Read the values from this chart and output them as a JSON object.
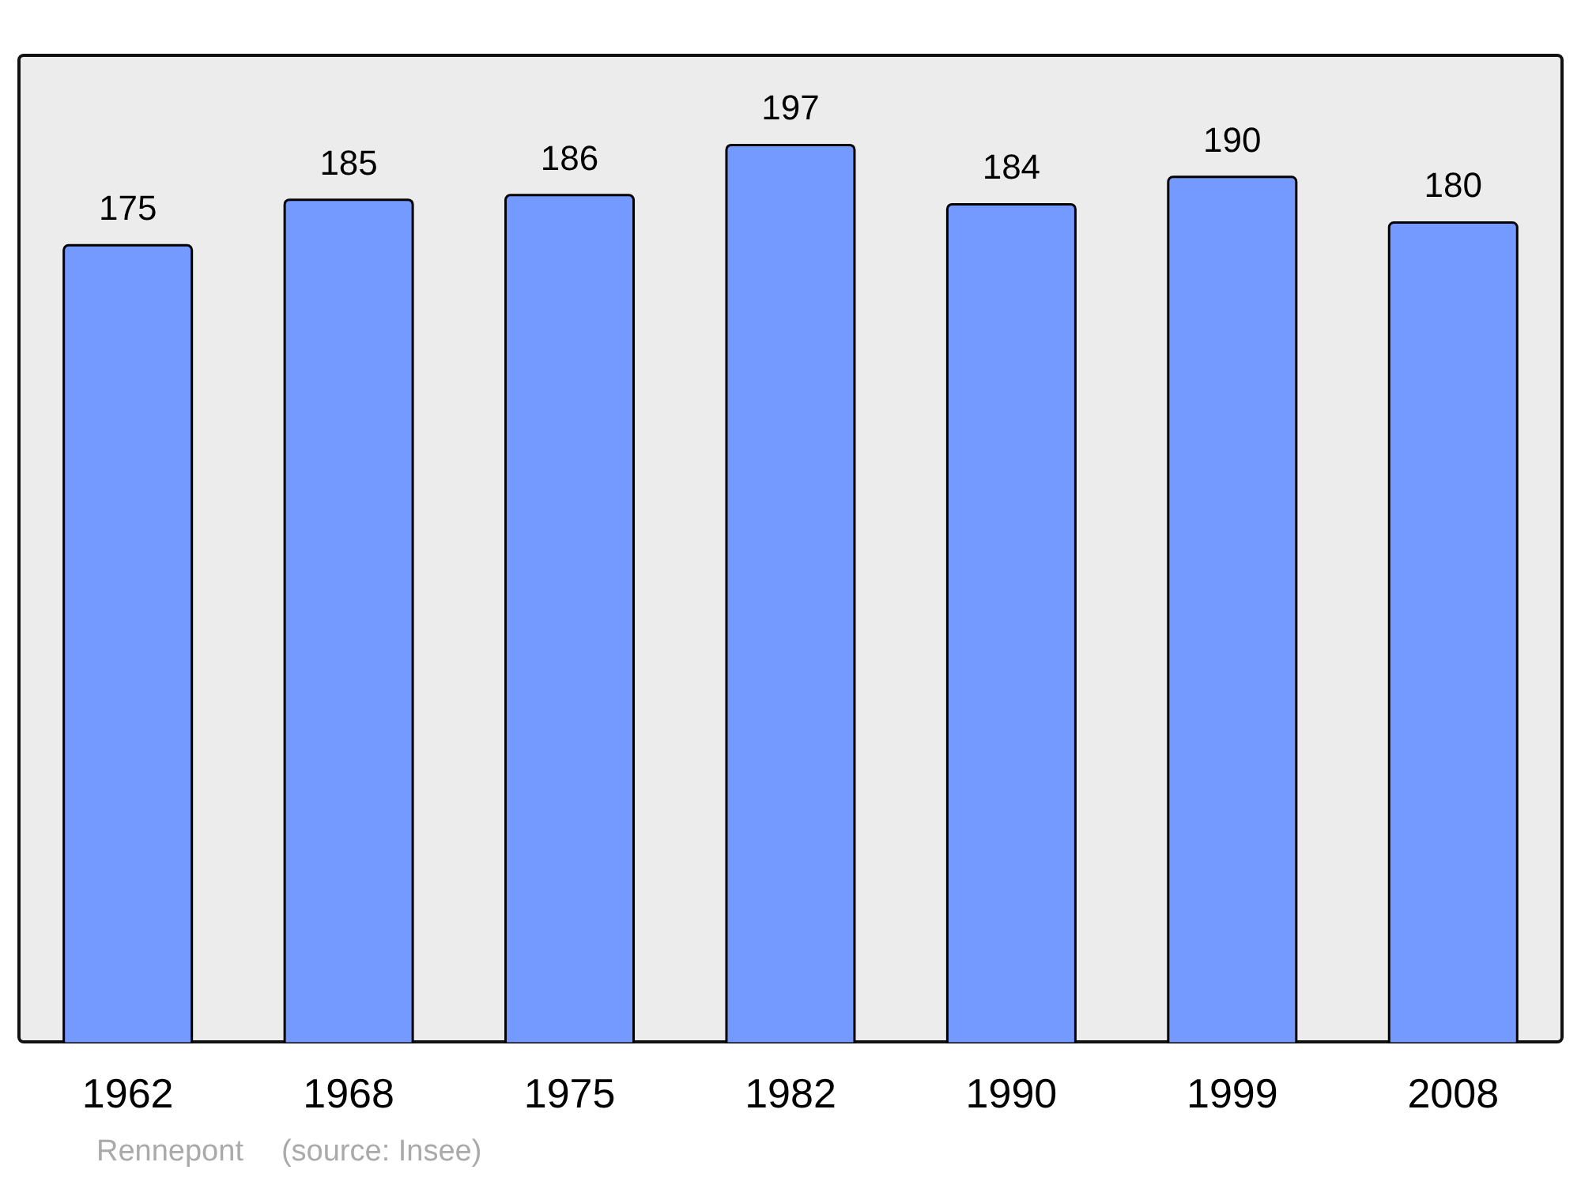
{
  "chart_data": {
    "type": "bar",
    "categories": [
      "1962",
      "1968",
      "1975",
      "1982",
      "1990",
      "1999",
      "2008"
    ],
    "values": [
      175,
      185,
      186,
      197,
      184,
      190,
      180
    ],
    "color": "#7499ff",
    "ylim": [
      0,
      217
    ],
    "data_labels": true,
    "grid": false,
    "annotations": [
      "Rennepont",
      "(source: Insee)"
    ]
  }
}
